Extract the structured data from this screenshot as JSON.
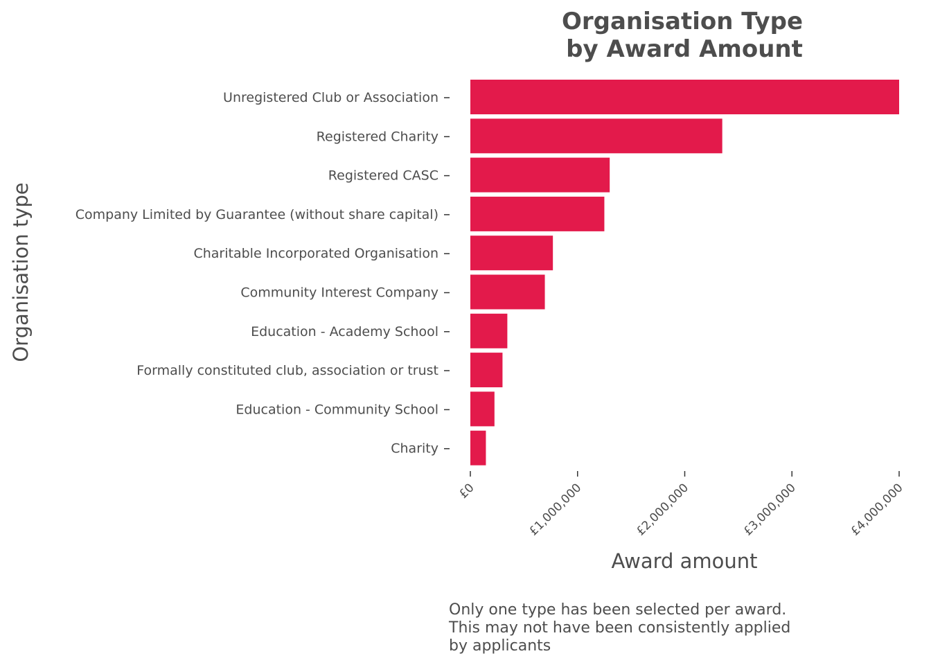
{
  "chart_data": {
    "type": "bar",
    "orientation": "horizontal",
    "title": [
      "Organisation Type",
      "by Award Amount"
    ],
    "xlabel": "Award amount",
    "ylabel": "Organisation type",
    "categories": [
      "Unregistered Club or Association",
      "Registered Charity",
      "Registered CASC",
      "Company Limited by Guarantee (without share capital)",
      "Charitable Incorporated Organisation",
      "Community Interest Company",
      "Education - Academy School",
      "Formally constituted club, association or trust",
      "Education - Community School",
      "Charity"
    ],
    "values": [
      4000000,
      2350000,
      1300000,
      1250000,
      770000,
      695000,
      345000,
      300000,
      225000,
      145000
    ],
    "xlim": [
      0,
      4000000
    ],
    "xticks": [
      0,
      1000000,
      2000000,
      3000000,
      4000000
    ],
    "xtick_labels": [
      "£0",
      "£1,000,000",
      "£2,000,000",
      "£3,000,000",
      "£4,000,000"
    ],
    "bar_color": "#e31a4b",
    "grid": false,
    "caption": [
      "Only one type has been selected per award.",
      "This may not have been consistently applied",
      "by applicants"
    ]
  }
}
